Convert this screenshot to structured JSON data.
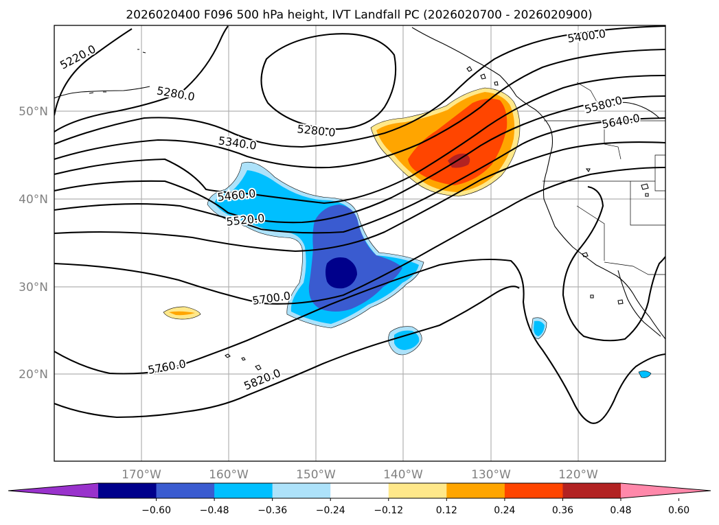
{
  "title": "2026020400 F096 500 hPa height, IVT Landfall PC (2026020700 - 2026020900)",
  "map": {
    "lat_ticks": [
      "50°N",
      "40°N",
      "30°N",
      "20°N"
    ],
    "lon_ticks": [
      "170°W",
      "160°W",
      "150°W",
      "140°W",
      "130°W",
      "120°W"
    ]
  },
  "contour_labels": [
    "5220.0",
    "5280.0",
    "5280.0",
    "5340.0",
    "5400.0",
    "5460.0",
    "5520.0",
    "5580.0",
    "5640.0",
    "5700.0",
    "5760.0",
    "5820.0"
  ],
  "colorbar": {
    "ticks": [
      "−0.60",
      "−0.48",
      "−0.36",
      "−0.24",
      "−0.12",
      "0.12",
      "0.24",
      "0.36",
      "0.48",
      "0.60"
    ],
    "colors": [
      "#9932cc",
      "#00008b",
      "#3a5bd0",
      "#00bfff",
      "#ade2fa",
      "#ffffff",
      "#ffe88a",
      "#ffa500",
      "#ff4500",
      "#b22222",
      "#ff88aa"
    ]
  }
}
